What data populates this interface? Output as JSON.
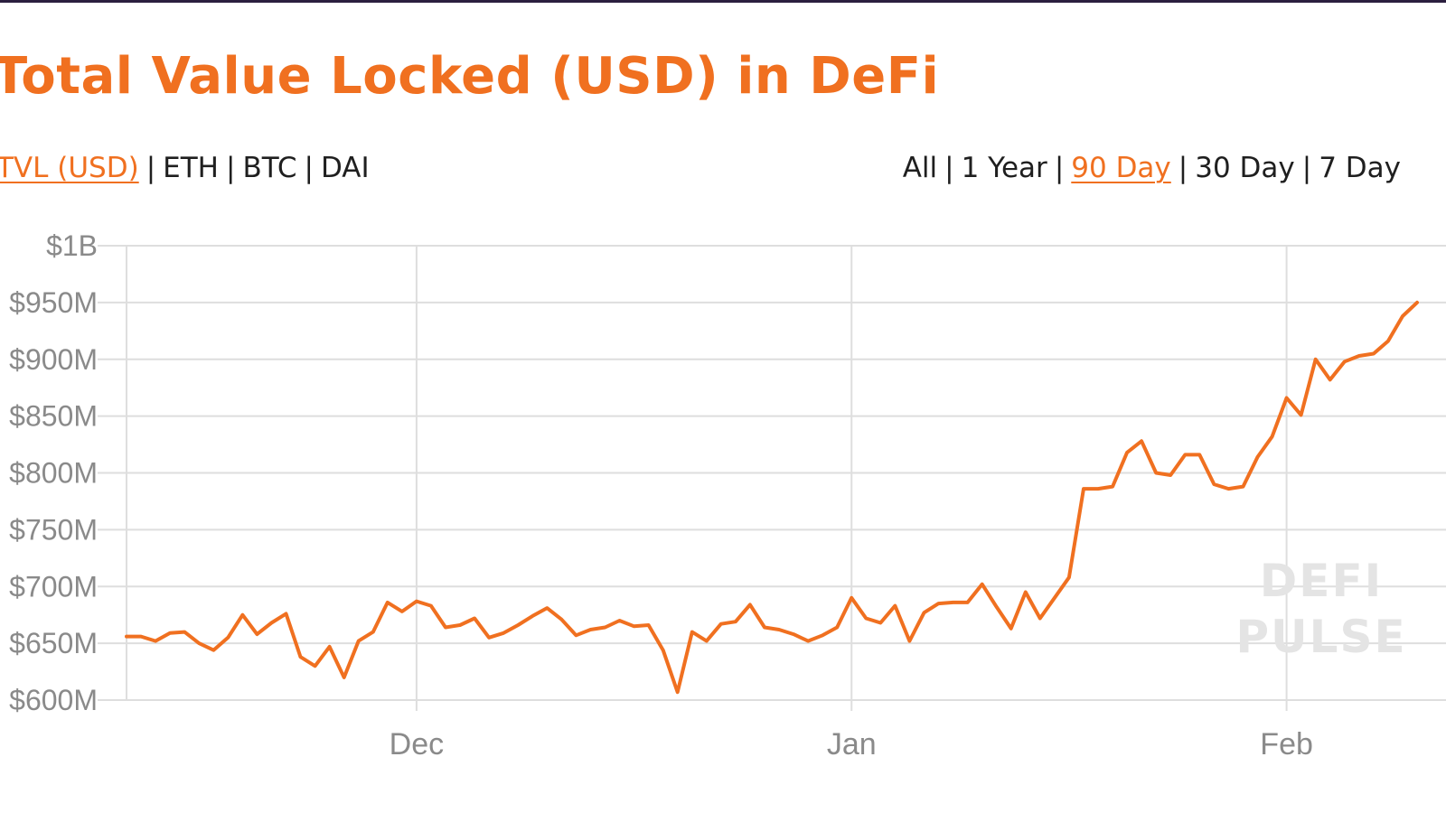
{
  "title": "Total Value Locked (USD) in DeFi",
  "metric_tabs": [
    {
      "label": "TVL (USD)",
      "active": true
    },
    {
      "label": "ETH",
      "active": false
    },
    {
      "label": "BTC",
      "active": false
    },
    {
      "label": "DAI",
      "active": false
    }
  ],
  "range_tabs": [
    {
      "label": "All",
      "active": false
    },
    {
      "label": "1 Year",
      "active": false
    },
    {
      "label": "90 Day",
      "active": true
    },
    {
      "label": "30 Day",
      "active": false
    },
    {
      "label": "7 Day",
      "active": false
    }
  ],
  "separator": "|",
  "watermark": [
    "DEFI",
    "PULSE"
  ],
  "colors": {
    "accent": "#f07020",
    "text": "#1f1f1f",
    "grid": "#dedede",
    "axis_text": "#8a8a8a",
    "top_bar": "#2b1f3f"
  },
  "chart_data": {
    "type": "line",
    "title": "Total Value Locked (USD) in DeFi",
    "xlabel": "",
    "ylabel": "",
    "ylim": [
      600,
      1000
    ],
    "y_unit": "$M",
    "yticks": [
      {
        "value": 1000,
        "label": "$1B"
      },
      {
        "value": 950,
        "label": "$950M"
      },
      {
        "value": 900,
        "label": "$900M"
      },
      {
        "value": 850,
        "label": "$850M"
      },
      {
        "value": 800,
        "label": "$800M"
      },
      {
        "value": 750,
        "label": "$750M"
      },
      {
        "value": 700,
        "label": "$700M"
      },
      {
        "value": 650,
        "label": "$650M"
      },
      {
        "value": 600,
        "label": "$600M"
      }
    ],
    "xticks": [
      {
        "label": "Dec",
        "index": 20
      },
      {
        "label": "Jan",
        "index": 50
      },
      {
        "label": "Feb",
        "index": 80
      }
    ],
    "grid": true,
    "legend": "none",
    "series": [
      {
        "values": [
          656,
          656,
          652,
          659,
          660,
          650,
          644,
          655,
          675,
          658,
          668,
          676,
          638,
          630,
          647,
          620,
          652,
          660,
          686,
          678,
          687,
          683,
          664,
          666,
          672,
          655,
          659,
          666,
          674,
          681,
          671,
          657,
          662,
          664,
          670,
          665,
          666,
          644,
          607,
          660,
          652,
          667,
          669,
          684,
          664,
          662,
          658,
          652,
          657,
          664,
          690,
          672,
          668,
          683,
          652,
          677,
          685,
          686,
          686,
          702,
          682,
          663,
          695,
          672,
          690,
          708,
          786,
          786,
          788,
          818,
          828,
          800,
          798,
          816,
          816,
          790,
          786,
          788,
          814,
          832,
          866,
          851,
          900,
          882,
          898,
          903,
          905,
          916,
          938,
          950
        ]
      }
    ]
  }
}
